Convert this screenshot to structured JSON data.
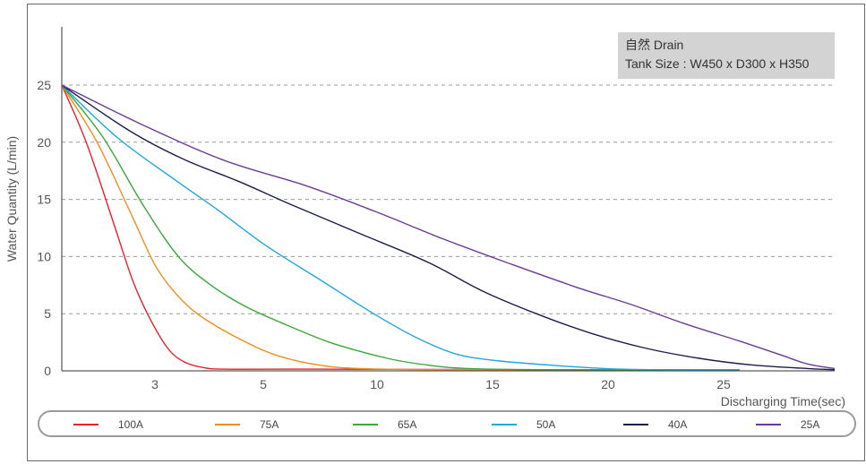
{
  "chart_data": {
    "type": "line",
    "title": "",
    "xlabel": "Discharging Time(sec)",
    "ylabel": "Water Quantity (L/min)",
    "xlim": [
      0,
      28.5
    ],
    "ylim": [
      0,
      25
    ],
    "xticks": [
      3,
      5,
      10,
      15,
      20,
      25
    ],
    "yticks": [
      0,
      5,
      10,
      15,
      20,
      25
    ],
    "grid": "horizontal-dashed",
    "legend_position": "bottom",
    "annotation": {
      "line1": "自然 Drain",
      "line2": "Tank Size : W450 x D300 x H350"
    },
    "series": [
      {
        "name": "100A",
        "color": "#e8212b",
        "points": [
          [
            0,
            25
          ],
          [
            0.9,
            20
          ],
          [
            1.9,
            13
          ],
          [
            2.6,
            8
          ],
          [
            3.2,
            4.8
          ],
          [
            3.9,
            2
          ],
          [
            4.5,
            0.8
          ],
          [
            5.2,
            0.3
          ],
          [
            6,
            0.15
          ],
          [
            9,
            0.15
          ],
          [
            18,
            0.1
          ],
          [
            25,
            0.1
          ]
        ]
      },
      {
        "name": "75A",
        "color": "#f28c1c",
        "points": [
          [
            0,
            25
          ],
          [
            1.3,
            20
          ],
          [
            2.6,
            13.5
          ],
          [
            3.5,
            9
          ],
          [
            4.5,
            6
          ],
          [
            5.5,
            4.2
          ],
          [
            6.8,
            2.5
          ],
          [
            8,
            1.3
          ],
          [
            9.5,
            0.5
          ],
          [
            11,
            0.2
          ],
          [
            14,
            0.1
          ],
          [
            20,
            0.1
          ],
          [
            25,
            0.1
          ]
        ]
      },
      {
        "name": "65A",
        "color": "#3aa83a",
        "points": [
          [
            0,
            25
          ],
          [
            1.5,
            20.5
          ],
          [
            3,
            14.5
          ],
          [
            4.3,
            10
          ],
          [
            5.5,
            7.5
          ],
          [
            6.8,
            5.6
          ],
          [
            8.5,
            3.8
          ],
          [
            10,
            2.4
          ],
          [
            12,
            1.1
          ],
          [
            13.5,
            0.5
          ],
          [
            15,
            0.2
          ],
          [
            18,
            0.1
          ],
          [
            25,
            0.1
          ]
        ]
      },
      {
        "name": "50A",
        "color": "#1fa7df",
        "points": [
          [
            0,
            25
          ],
          [
            2,
            20.5
          ],
          [
            4,
            17
          ],
          [
            5.8,
            14
          ],
          [
            7.5,
            11
          ],
          [
            9.5,
            8
          ],
          [
            11.5,
            5
          ],
          [
            13,
            3
          ],
          [
            14.5,
            1.5
          ],
          [
            16,
            0.9
          ],
          [
            18,
            0.5
          ],
          [
            20,
            0.2
          ],
          [
            22,
            0.1
          ],
          [
            25,
            0.1
          ]
        ]
      },
      {
        "name": "40A",
        "color": "#1c1e4e",
        "points": [
          [
            0,
            25
          ],
          [
            2.5,
            21
          ],
          [
            4.5,
            18.5
          ],
          [
            6.5,
            16.6
          ],
          [
            8.5,
            14.5
          ],
          [
            11,
            12
          ],
          [
            13.5,
            9.5
          ],
          [
            15.5,
            7
          ],
          [
            17.5,
            5
          ],
          [
            19.5,
            3.3
          ],
          [
            21.5,
            2
          ],
          [
            23.5,
            1.1
          ],
          [
            25.5,
            0.5
          ],
          [
            27.5,
            0.2
          ],
          [
            28.5,
            0.1
          ]
        ]
      },
      {
        "name": "25A",
        "color": "#6c3a9a",
        "points": [
          [
            0,
            25
          ],
          [
            3,
            21.5
          ],
          [
            6,
            18.4
          ],
          [
            9,
            16.2
          ],
          [
            11.5,
            14
          ],
          [
            14,
            11.6
          ],
          [
            16.5,
            9.4
          ],
          [
            19,
            7.3
          ],
          [
            21,
            5.8
          ],
          [
            23,
            4.1
          ],
          [
            25,
            2.6
          ],
          [
            26.5,
            1.4
          ],
          [
            27.5,
            0.6
          ],
          [
            28.5,
            0.2
          ]
        ]
      }
    ]
  }
}
